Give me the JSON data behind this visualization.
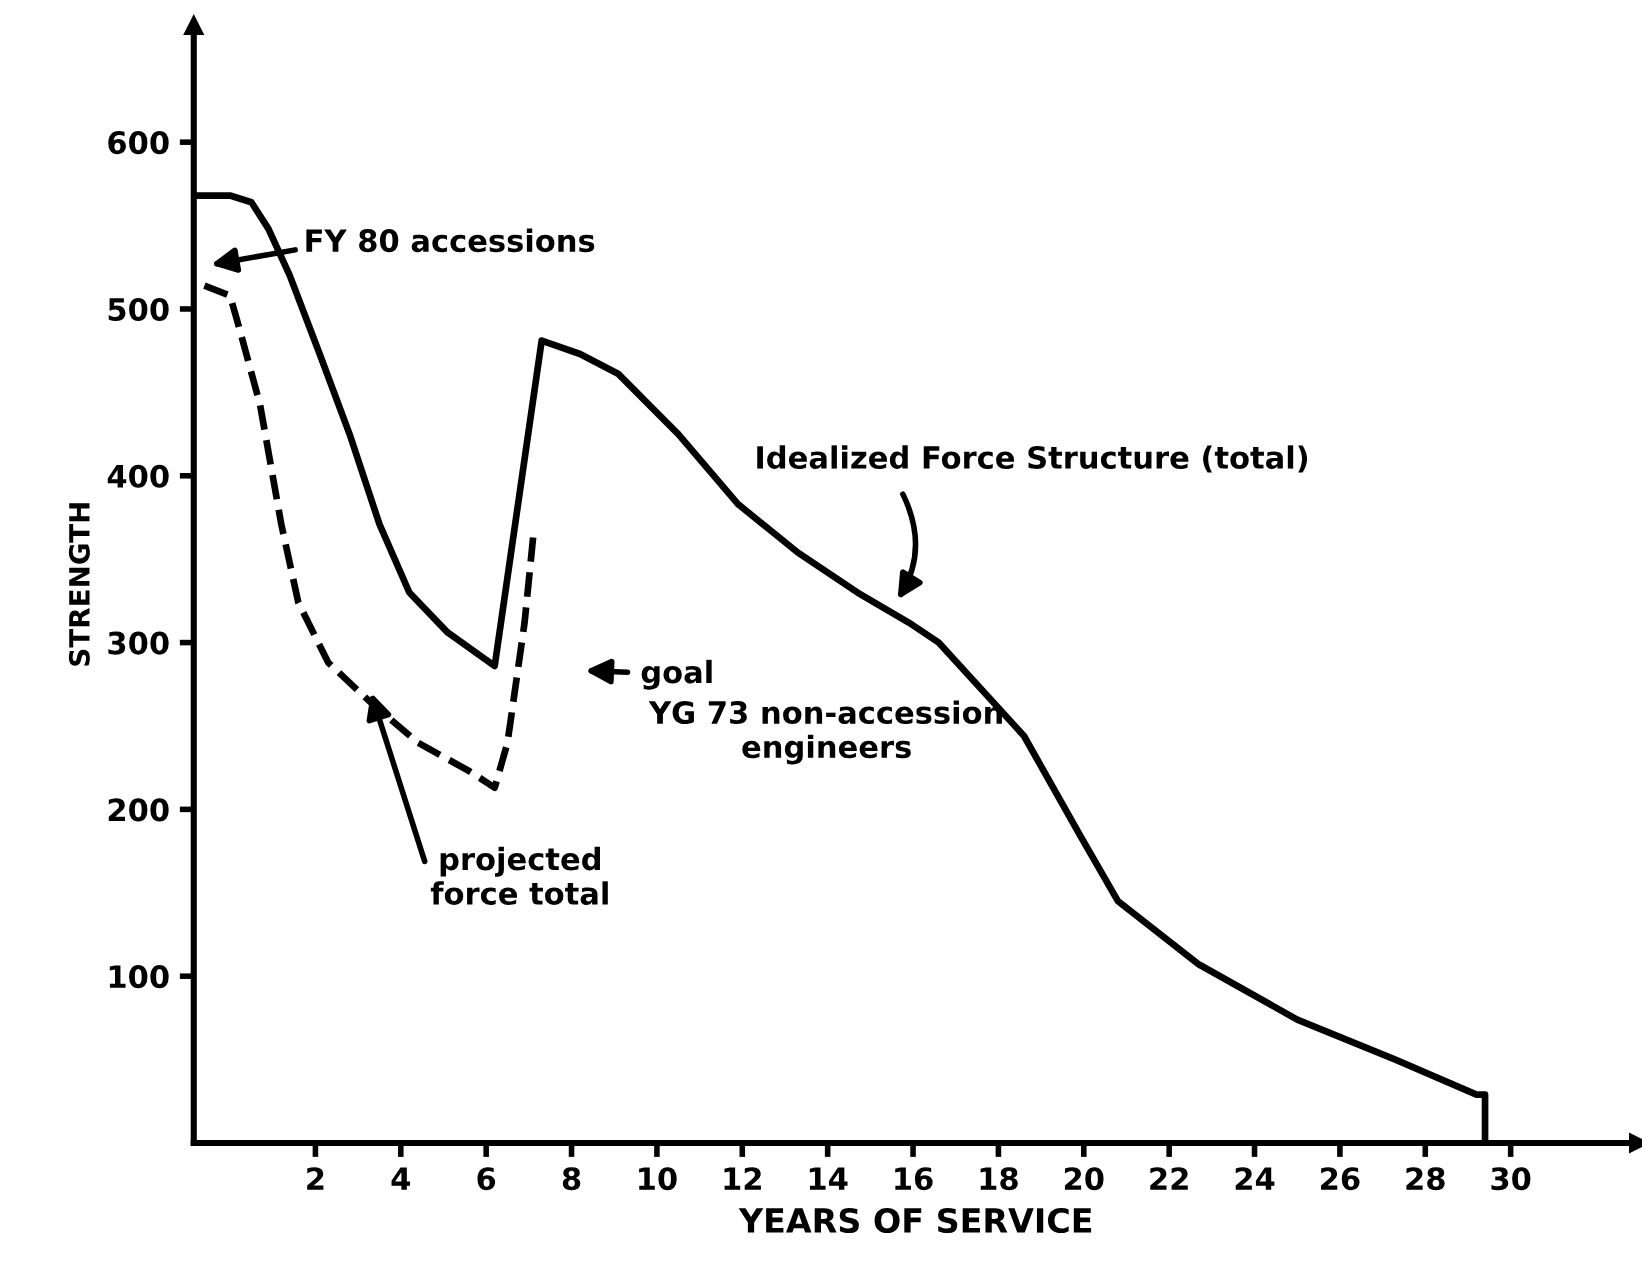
{
  "chart_data": {
    "type": "line",
    "xlabel": "YEARS OF SERVICE",
    "ylabel": "STRENGTH",
    "xlim": [
      -0.85,
      33
    ],
    "ylim": [
      0,
      670
    ],
    "xticks": [
      2,
      4,
      6,
      8,
      10,
      12,
      14,
      16,
      18,
      20,
      22,
      24,
      26,
      28,
      30
    ],
    "yticks": [
      100,
      200,
      300,
      400,
      500,
      600
    ],
    "grid": false,
    "legend": false,
    "marker": "none",
    "series": [
      {
        "color": "#000000",
        "line_style": "solid",
        "x": [
          -0.85,
          0,
          0.5,
          0.9,
          1.4,
          2.1,
          2.8,
          3.5,
          4.2,
          5.1,
          6.2,
          7.3,
          8.2,
          9.1,
          10.5,
          11.9,
          13.3,
          14.7,
          15.9,
          16.6,
          18.6,
          19.9,
          20.8,
          22.7,
          25,
          27.3,
          29.2,
          29.4,
          29.4
        ],
        "values": [
          568,
          568,
          564,
          548,
          520,
          473,
          425,
          371,
          330,
          306,
          286,
          481,
          473,
          461,
          425,
          383,
          354,
          330,
          312,
          300,
          244,
          185,
          145,
          107,
          74,
          50,
          29,
          29,
          0
        ]
      },
      {
        "color": "#000000",
        "line_style": "dashed",
        "x": [
          -0.6,
          0,
          0.2,
          0.7,
          1.2,
          1.6,
          2.3,
          3.3,
          4.4,
          5.6,
          6.2,
          6.5,
          6.9,
          7.1
        ],
        "values": [
          514,
          508,
          490,
          443,
          371,
          324,
          288,
          264,
          240,
          223,
          213,
          240,
          312,
          363
        ]
      }
    ],
    "annotations": [
      "FY 80 accessions",
      "Idealized Force Structure (total)",
      "goal",
      "YG 73 non-accession\nengineers",
      {
        "text": "projected\nforce total",
        "x": 3.3,
        "y": 270
      }
    ]
  }
}
